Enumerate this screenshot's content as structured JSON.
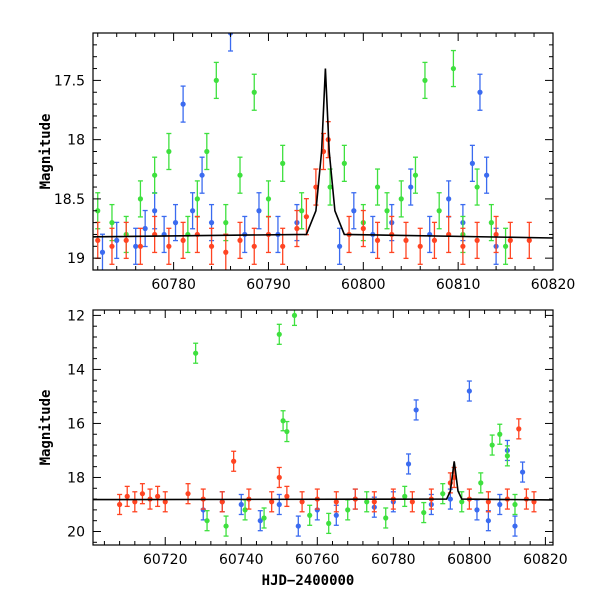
{
  "chart_data": [
    {
      "type": "scatter",
      "panel": "top",
      "xlim": [
        60771.5,
        60820
      ],
      "ylim": [
        19.1,
        17.1
      ],
      "y_inverted": true,
      "xlabel": "",
      "ylabel": "Magnitude",
      "x_ticks": [
        60780,
        60790,
        60800,
        60810,
        60820
      ],
      "y_ticks": [
        17.5,
        18,
        18.5,
        19
      ],
      "grid": false,
      "series": [
        {
          "color": "#3b6bf0",
          "marker": "circle-errorbar",
          "points": [
            [
              60772.5,
              18.95
            ],
            [
              60774.0,
              18.85
            ],
            [
              60776.0,
              18.9
            ],
            [
              60777.0,
              18.75
            ],
            [
              60778.0,
              18.6
            ],
            [
              60779.0,
              18.8
            ],
            [
              60780.2,
              18.7
            ],
            [
              60781.0,
              17.7
            ],
            [
              60782.0,
              18.6
            ],
            [
              60783.0,
              18.3
            ],
            [
              60784.0,
              18.7
            ],
            [
              60786.0,
              17.1
            ],
            [
              60787.5,
              18.8
            ],
            [
              60789.0,
              18.6
            ],
            [
              60791.0,
              18.8
            ],
            [
              60793.0,
              18.7
            ],
            [
              60797.5,
              18.9
            ],
            [
              60799.0,
              18.6
            ],
            [
              60801.0,
              18.8
            ],
            [
              60803.0,
              18.7
            ],
            [
              60805.0,
              18.4
            ],
            [
              60807.0,
              18.8
            ],
            [
              60809.0,
              18.5
            ],
            [
              60810.5,
              18.7
            ],
            [
              60811.5,
              18.2
            ],
            [
              60812.3,
              17.6
            ],
            [
              60813.0,
              18.3
            ],
            [
              60814.0,
              18.9
            ]
          ]
        },
        {
          "color": "#3ee03e",
          "marker": "circle-errorbar",
          "points": [
            [
              60772.0,
              18.6
            ],
            [
              60773.5,
              18.7
            ],
            [
              60775.0,
              18.8
            ],
            [
              60776.5,
              18.5
            ],
            [
              60778.0,
              18.3
            ],
            [
              60779.5,
              18.1
            ],
            [
              60781.5,
              18.8
            ],
            [
              60782.5,
              18.5
            ],
            [
              60783.5,
              18.1
            ],
            [
              60784.5,
              17.5
            ],
            [
              60785.5,
              18.7
            ],
            [
              60787.0,
              18.3
            ],
            [
              60788.5,
              17.6
            ],
            [
              60790.0,
              18.5
            ],
            [
              60791.5,
              18.2
            ],
            [
              60793.5,
              18.6
            ],
            [
              60796.5,
              18.4
            ],
            [
              60798.0,
              18.2
            ],
            [
              60800.0,
              18.7
            ],
            [
              60801.5,
              18.4
            ],
            [
              60802.5,
              18.6
            ],
            [
              60804.0,
              18.5
            ],
            [
              60805.5,
              18.3
            ],
            [
              60806.5,
              17.5
            ],
            [
              60808.0,
              18.6
            ],
            [
              60809.5,
              17.4
            ],
            [
              60810.5,
              18.8
            ],
            [
              60812.0,
              18.4
            ],
            [
              60813.5,
              18.7
            ],
            [
              60815.0,
              18.9
            ]
          ]
        },
        {
          "color": "#ff4422",
          "marker": "circle-errorbar",
          "points": [
            [
              60772.0,
              18.85
            ],
            [
              60773.5,
              18.9
            ],
            [
              60775.0,
              18.85
            ],
            [
              60776.5,
              18.9
            ],
            [
              60778.0,
              18.8
            ],
            [
              60779.5,
              18.9
            ],
            [
              60781.0,
              18.85
            ],
            [
              60782.5,
              18.8
            ],
            [
              60784.0,
              18.9
            ],
            [
              60785.5,
              18.95
            ],
            [
              60787.0,
              18.85
            ],
            [
              60788.5,
              18.9
            ],
            [
              60790.0,
              18.8
            ],
            [
              60791.5,
              18.9
            ],
            [
              60793.0,
              18.75
            ],
            [
              60794.0,
              18.65
            ],
            [
              60795.0,
              18.4
            ],
            [
              60795.8,
              18.1
            ],
            [
              60796.3,
              18.0
            ],
            [
              60798.5,
              18.8
            ],
            [
              60800.0,
              18.75
            ],
            [
              60801.5,
              18.85
            ],
            [
              60803.0,
              18.8
            ],
            [
              60804.5,
              18.85
            ],
            [
              60806.0,
              18.9
            ],
            [
              60807.5,
              18.85
            ],
            [
              60809.0,
              18.8
            ],
            [
              60810.5,
              18.9
            ],
            [
              60812.0,
              18.85
            ],
            [
              60814.0,
              18.8
            ],
            [
              60815.5,
              18.85
            ],
            [
              60817.5,
              18.85
            ]
          ]
        }
      ],
      "model_curve": {
        "color": "#000000",
        "points": [
          [
            60771.5,
            18.82
          ],
          [
            60794.0,
            18.8
          ],
          [
            60795.0,
            18.6
          ],
          [
            60795.6,
            18.1
          ],
          [
            60796.0,
            17.4
          ],
          [
            60796.4,
            18.1
          ],
          [
            60797.0,
            18.6
          ],
          [
            60798.0,
            18.8
          ],
          [
            60820,
            18.83
          ]
        ]
      }
    },
    {
      "type": "scatter",
      "panel": "bottom",
      "xlim": [
        60701,
        60822
      ],
      "ylim": [
        20.5,
        11.8
      ],
      "y_inverted": true,
      "xlabel": "HJD−2400000",
      "ylabel": "Magnitude",
      "x_ticks": [
        60720,
        60740,
        60760,
        60780,
        60800,
        60820
      ],
      "y_ticks": [
        12,
        14,
        16,
        18,
        20
      ],
      "grid": false,
      "series": [
        {
          "color": "#3b6bf0",
          "marker": "circle-errorbar",
          "points": [
            [
              60730,
              19.2
            ],
            [
              60735,
              18.9
            ],
            [
              60740,
              19.0
            ],
            [
              60745,
              19.6
            ],
            [
              60750,
              19.0
            ],
            [
              60755,
              19.8
            ],
            [
              60760,
              19.2
            ],
            [
              60765,
              19.4
            ],
            [
              60770,
              18.8
            ],
            [
              60775,
              19.1
            ],
            [
              60780,
              18.9
            ],
            [
              60784,
              17.5
            ],
            [
              60786,
              15.5
            ],
            [
              60790,
              19.0
            ],
            [
              60795,
              18.8
            ],
            [
              60800,
              14.8
            ],
            [
              60802,
              19.2
            ],
            [
              60805,
              19.6
            ],
            [
              60808,
              19.0
            ],
            [
              60810,
              17.0
            ],
            [
              60812,
              19.8
            ],
            [
              60814,
              17.8
            ]
          ]
        },
        {
          "color": "#3ee03e",
          "marker": "circle-errorbar",
          "points": [
            [
              60728,
              13.4
            ],
            [
              60731,
              19.6
            ],
            [
              60736,
              19.8
            ],
            [
              60741,
              19.2
            ],
            [
              60746,
              19.5
            ],
            [
              60750,
              12.7
            ],
            [
              60751,
              15.9
            ],
            [
              60752,
              16.3
            ],
            [
              60754,
              12.0
            ],
            [
              60758,
              19.4
            ],
            [
              60763,
              19.7
            ],
            [
              60768,
              19.2
            ],
            [
              60773,
              18.9
            ],
            [
              60778,
              19.5
            ],
            [
              60783,
              18.7
            ],
            [
              60788,
              19.3
            ],
            [
              60793,
              18.6
            ],
            [
              60798,
              18.9
            ],
            [
              60803,
              18.2
            ],
            [
              60806,
              16.8
            ],
            [
              60808,
              16.4
            ],
            [
              60810,
              17.2
            ],
            [
              60812,
              19.0
            ]
          ]
        },
        {
          "color": "#ff4422",
          "marker": "circle-errorbar",
          "points": [
            [
              60708,
              19.0
            ],
            [
              60710,
              18.7
            ],
            [
              60712,
              18.9
            ],
            [
              60714,
              18.6
            ],
            [
              60716,
              18.8
            ],
            [
              60718,
              18.7
            ],
            [
              60720,
              18.9
            ],
            [
              60726,
              18.6
            ],
            [
              60730,
              18.8
            ],
            [
              60735,
              18.9
            ],
            [
              60738,
              17.4
            ],
            [
              60742,
              18.8
            ],
            [
              60748,
              18.9
            ],
            [
              60750,
              18.0
            ],
            [
              60752,
              18.7
            ],
            [
              60756,
              18.9
            ],
            [
              60760,
              18.8
            ],
            [
              60765,
              18.9
            ],
            [
              60770,
              18.8
            ],
            [
              60775,
              18.9
            ],
            [
              60780,
              18.8
            ],
            [
              60785,
              18.9
            ],
            [
              60790,
              18.8
            ],
            [
              60795,
              18.2
            ],
            [
              60796,
              18.0
            ],
            [
              60800,
              18.8
            ],
            [
              60805,
              18.9
            ],
            [
              60810,
              18.8
            ],
            [
              60813,
              16.2
            ],
            [
              60815,
              18.8
            ],
            [
              60817,
              18.9
            ]
          ]
        }
      ],
      "model_curve": {
        "color": "#000000",
        "points": [
          [
            60701,
            18.82
          ],
          [
            60794,
            18.8
          ],
          [
            60795,
            18.5
          ],
          [
            60796,
            17.4
          ],
          [
            60797,
            18.5
          ],
          [
            60798,
            18.8
          ],
          [
            60822,
            18.83
          ]
        ]
      }
    }
  ]
}
